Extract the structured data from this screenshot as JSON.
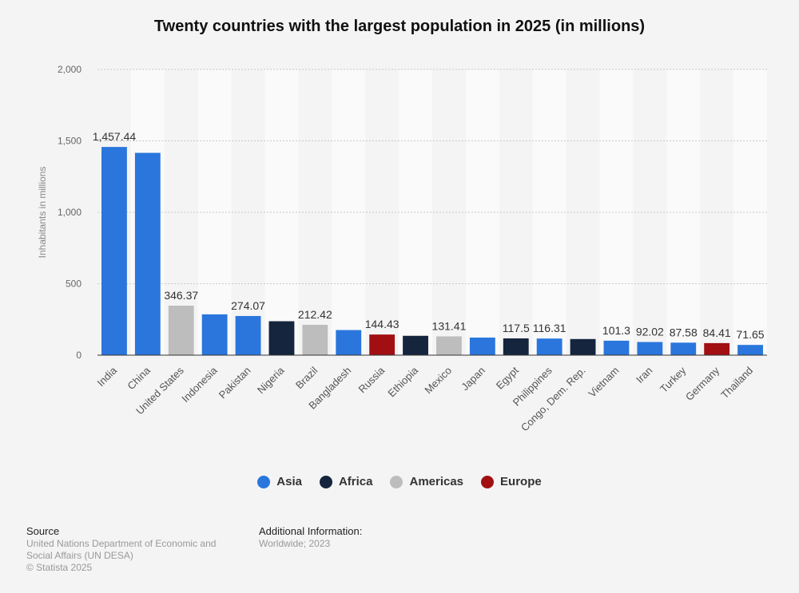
{
  "title": "Twenty countries with the largest population in 2025 (in millions)",
  "chart_data": {
    "type": "bar",
    "title": "Twenty countries with the largest population in 2025 (in millions)",
    "ylabel": "Inhabitants in millions",
    "xlabel": "",
    "ylim": [
      0,
      2000
    ],
    "yticks": [
      0,
      500,
      1000,
      1500,
      2000
    ],
    "ytick_labels": [
      "0",
      "500",
      "1,000",
      "1,500",
      "2,000"
    ],
    "categories": [
      "India",
      "China",
      "United States",
      "Indonesia",
      "Pakistan",
      "Nigeria",
      "Brazil",
      "Bangladesh",
      "Russia",
      "Ethiopia",
      "Mexico",
      "Japan",
      "Egypt",
      "Philippines",
      "Congo, Dem. Rep.",
      "Vietnam",
      "Iran",
      "Turkey",
      "Germany",
      "Thailand"
    ],
    "values": [
      1457.44,
      1416.1,
      346.37,
      285.72,
      274.07,
      237.53,
      212.42,
      175.69,
      144.43,
      135.47,
      131.41,
      123.1,
      117.5,
      116.31,
      112.83,
      101.3,
      92.02,
      87.58,
      84.41,
      71.65
    ],
    "regions": [
      "Asia",
      "Asia",
      "Americas",
      "Asia",
      "Asia",
      "Africa",
      "Americas",
      "Asia",
      "Europe",
      "Africa",
      "Americas",
      "Asia",
      "Africa",
      "Asia",
      "Africa",
      "Asia",
      "Asia",
      "Asia",
      "Europe",
      "Asia"
    ],
    "data_labels": [
      "1,457.44",
      "",
      "346.37",
      "",
      "274.07",
      "",
      "212.42",
      "",
      "144.43",
      "",
      "131.41",
      "",
      "117.5",
      "116.31",
      "",
      "101.3",
      "92.02",
      "87.58",
      "84.41",
      "71.65"
    ],
    "legend": [
      {
        "name": "Asia",
        "color": "#2a76dd"
      },
      {
        "name": "Africa",
        "color": "#14253d"
      },
      {
        "name": "Americas",
        "color": "#bdbdbd"
      },
      {
        "name": "Europe",
        "color": "#a10f13"
      }
    ],
    "legend_position": "bottom-center",
    "grid": true
  },
  "footer": {
    "source_heading": "Source",
    "source_lines": [
      "United Nations Department of Economic and Social Affairs (UN DESA)",
      "© Statista 2025"
    ],
    "additional_heading": "Additional Information:",
    "additional_lines": [
      "Worldwide; 2023"
    ]
  }
}
